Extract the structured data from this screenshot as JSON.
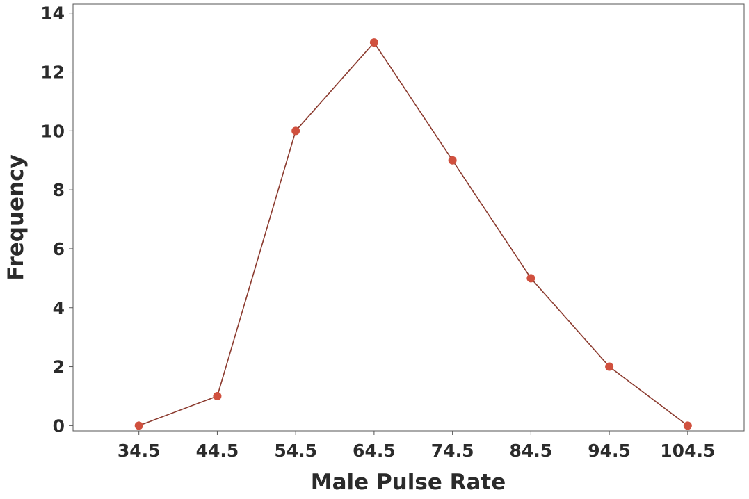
{
  "chart_data": {
    "type": "line",
    "title": "",
    "xlabel": "Male Pulse Rate",
    "ylabel": "Frequency",
    "x": [
      34.5,
      44.5,
      54.5,
      64.5,
      74.5,
      84.5,
      94.5,
      104.5
    ],
    "x_tick_labels": [
      "34.5",
      "44.5",
      "54.5",
      "64.5",
      "74.5",
      "84.5",
      "94.5",
      "104.5"
    ],
    "series": [
      {
        "values": [
          0,
          1,
          10,
          13,
          9,
          5,
          2,
          0
        ]
      }
    ],
    "y_ticks": [
      0,
      2,
      4,
      6,
      8,
      10,
      12,
      14
    ],
    "xlim": [
      26.1,
      111.7
    ],
    "ylim": [
      -0.18,
      14.3
    ],
    "grid": false,
    "line_color": "#8B3A2E",
    "marker_color": "#D0503E"
  }
}
